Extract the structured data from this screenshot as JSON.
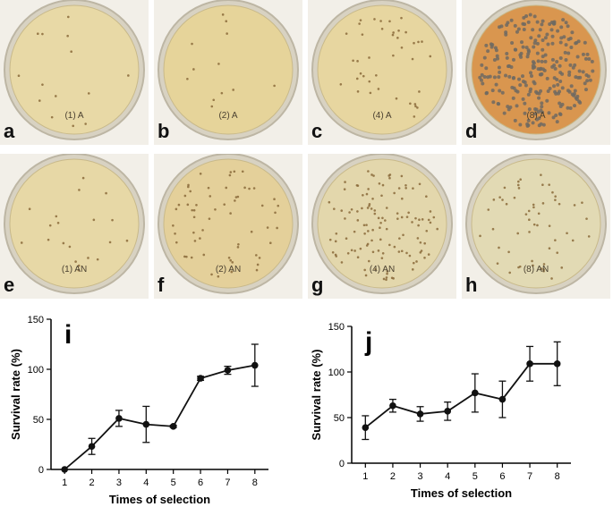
{
  "photo_panels": [
    {
      "letter": "a",
      "plate_label": "(1) A",
      "tint": "#e8d9a6"
    },
    {
      "letter": "b",
      "plate_label": "(2) A",
      "tint": "#e6d49a"
    },
    {
      "letter": "c",
      "plate_label": "(4) A",
      "tint": "#e7d6a0"
    },
    {
      "letter": "d",
      "plate_label": "(8) A",
      "tint": "#d9964f"
    },
    {
      "letter": "e",
      "plate_label": "(1) AN",
      "tint": "#e7d8a6"
    },
    {
      "letter": "f",
      "plate_label": "(2) AN",
      "tint": "#e4d09a"
    },
    {
      "letter": "g",
      "plate_label": "(4) AN",
      "tint": "#e3d7ac"
    },
    {
      "letter": "h",
      "plate_label": "(8) AN",
      "tint": "#e2dab4"
    }
  ],
  "colors": {
    "axis": "#000000",
    "line": "#111111",
    "background": "#ffffff"
  },
  "chart_data": [
    {
      "type": "line",
      "panel_letter": "i",
      "xlabel": "Times of selection",
      "ylabel": "Survival rate (%)",
      "x": [
        1,
        2,
        3,
        4,
        5,
        6,
        7,
        8
      ],
      "xlim": [
        0.5,
        8.5
      ],
      "ylim": [
        0,
        150
      ],
      "yticks": [
        0,
        50,
        100,
        150
      ],
      "series": [
        {
          "values": [
            0,
            23,
            51,
            45,
            43,
            91,
            99,
            104
          ],
          "error": [
            0,
            8,
            8,
            18,
            1,
            2,
            4,
            21
          ]
        }
      ],
      "grid": false
    },
    {
      "type": "line",
      "panel_letter": "j",
      "xlabel": "Times of selection",
      "ylabel": "Survival rate (%)",
      "x": [
        1,
        2,
        3,
        4,
        5,
        6,
        7,
        8
      ],
      "xlim": [
        0.5,
        8.5
      ],
      "ylim": [
        0,
        150
      ],
      "yticks": [
        0,
        50,
        100,
        150
      ],
      "series": [
        {
          "values": [
            39,
            63,
            54,
            57,
            77,
            70,
            109,
            109
          ],
          "error": [
            13,
            7,
            8,
            10,
            21,
            20,
            19,
            24
          ]
        }
      ],
      "grid": false
    }
  ]
}
